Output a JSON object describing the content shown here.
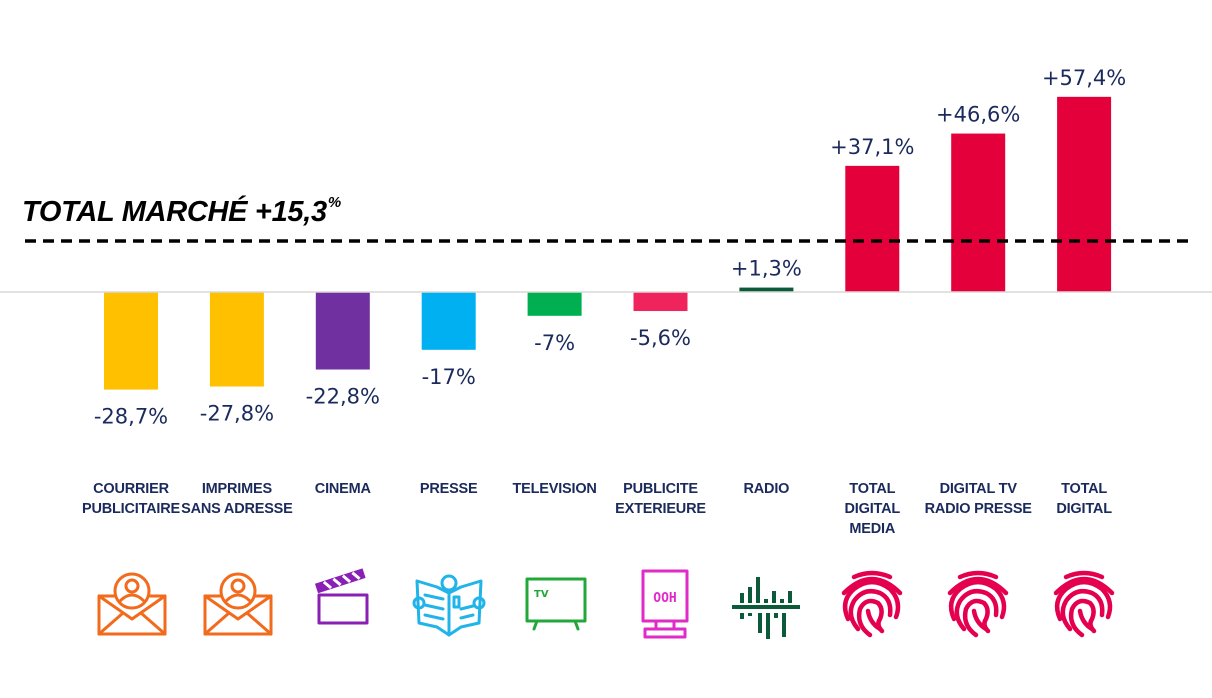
{
  "chart_data": {
    "type": "bar",
    "title": "",
    "xlabel": "",
    "ylabel": "",
    "ylim": [
      -30,
      60
    ],
    "grid": false,
    "legend": "none",
    "unit": "%",
    "categories": [
      "COURRIER\nPUBLICITAIRE",
      "IMPRIMES\nSANS ADRESSE",
      "CINEMA",
      "PRESSE",
      "TELEVISION",
      "PUBLICITE\nEXTERIEURE",
      "RADIO",
      "TOTAL\nDIGITAL\nMEDIA",
      "DIGITAL TV\nRADIO PRESSE",
      "TOTAL\nDIGITAL"
    ],
    "values": [
      -28.7,
      -27.8,
      -22.8,
      -17,
      -7,
      -5.6,
      1.3,
      37.1,
      46.6,
      57.4
    ],
    "data_labels": [
      "-28,7%",
      "-27,8%",
      "-22,8%",
      "-17%",
      "-7%",
      "-5,6%",
      "+1,3%",
      "+37,1%",
      "+46,6%",
      "+57,4%"
    ],
    "bar_colors": [
      "#ffc000",
      "#ffc000",
      "#7030a0",
      "#00b0f0",
      "#00b050",
      "#f0245c",
      "#0b5a3a",
      "#e4003a",
      "#e4003a",
      "#e4003a"
    ],
    "icons": [
      "mail-person-icon",
      "mail-person-icon",
      "clapperboard-icon",
      "newspaper-icon",
      "tv-icon",
      "ooh-billboard-icon",
      "radio-waveform-icon",
      "fingerprint-icon",
      "fingerprint-icon",
      "fingerprint-icon"
    ],
    "icon_colors": [
      "#f26a1b",
      "#f26a1b",
      "#8a1fb5",
      "#21b4e8",
      "#22a83a",
      "#e02bc8",
      "#0b5a3a",
      "#e4004f",
      "#e4004f",
      "#e4004f"
    ],
    "reference_line": {
      "label": "TOTAL MARCHÉ +15,3",
      "label_suffix": "%",
      "value": 15.3,
      "style": "dashed",
      "color": "#000000"
    },
    "label_color": "#1b2a5c",
    "baseline_color": "#d9d9d9"
  }
}
